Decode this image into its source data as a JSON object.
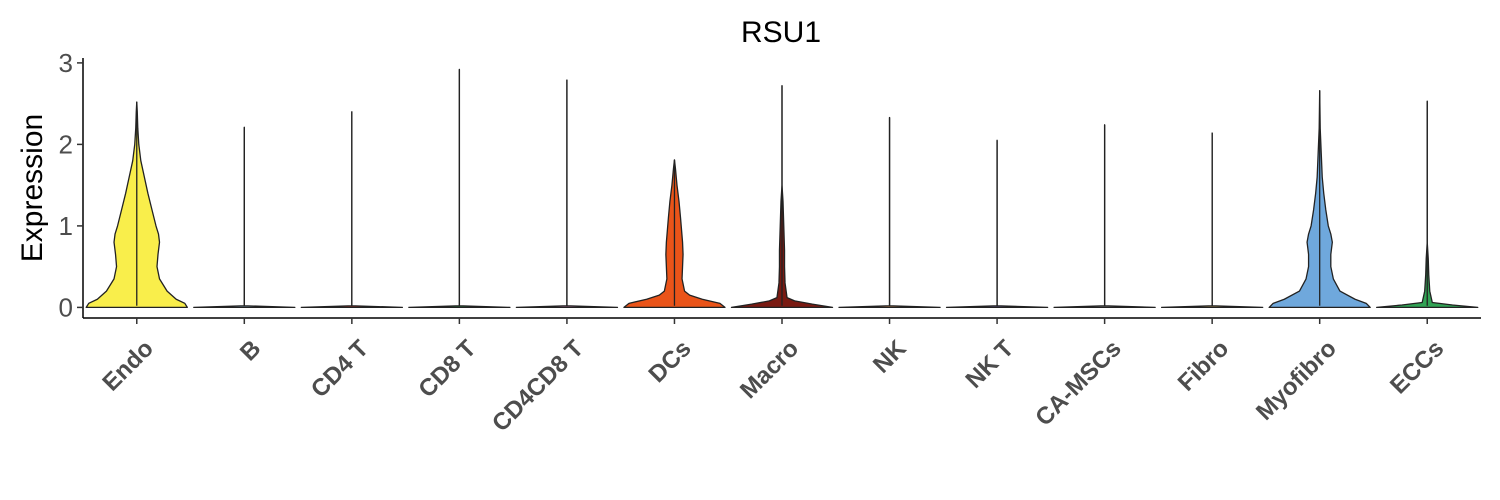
{
  "chart_data": {
    "type": "violin",
    "title": "RSU1",
    "xlabel": "",
    "ylabel": "Expression",
    "ylim": [
      -0.13,
      3.06
    ],
    "yticks": [
      0,
      1,
      2,
      3
    ],
    "categories": [
      "Endo",
      "B",
      "CD4 T",
      "CD8 T",
      "CD4CD8 T",
      "DCs",
      "Macro",
      "NK",
      "NK T",
      "CA-MSCs",
      "Fibro",
      "Myofibro",
      "ECCs"
    ],
    "colors": [
      "#F9EE4B",
      "#9EC9E2",
      "#D93A2B",
      "#2E9E4A",
      "#E08AC2",
      "#EA5419",
      "#7A1A12",
      "#F4A261",
      "#7B6CB0",
      "#9E9E9E",
      "#E9C46A",
      "#6FA8DC",
      "#31A354"
    ],
    "series": [
      {
        "name": "Endo",
        "max": 2.52,
        "profile": [
          [
            0,
            1.0
          ],
          [
            0.05,
            0.95
          ],
          [
            0.1,
            0.78
          ],
          [
            0.2,
            0.6
          ],
          [
            0.35,
            0.45
          ],
          [
            0.5,
            0.4
          ],
          [
            0.65,
            0.42
          ],
          [
            0.8,
            0.45
          ],
          [
            0.9,
            0.43
          ],
          [
            1.0,
            0.38
          ],
          [
            1.2,
            0.3
          ],
          [
            1.4,
            0.22
          ],
          [
            1.6,
            0.15
          ],
          [
            1.8,
            0.08
          ],
          [
            2.0,
            0.04
          ],
          [
            2.2,
            0.02
          ],
          [
            2.4,
            0.01
          ],
          [
            2.52,
            0.0
          ]
        ]
      },
      {
        "name": "B",
        "max": 2.21,
        "profile": [
          [
            0,
            1.0
          ],
          [
            0.02,
            0.0
          ],
          [
            2.21,
            0.0
          ]
        ]
      },
      {
        "name": "CD4 T",
        "max": 2.4,
        "profile": [
          [
            0,
            1.0
          ],
          [
            0.02,
            0.0
          ],
          [
            2.4,
            0.0
          ]
        ]
      },
      {
        "name": "CD8 T",
        "max": 2.92,
        "profile": [
          [
            0,
            1.0
          ],
          [
            0.02,
            0.0
          ],
          [
            2.92,
            0.0
          ]
        ]
      },
      {
        "name": "CD4CD8 T",
        "max": 2.79,
        "profile": [
          [
            0,
            1.0
          ],
          [
            0.02,
            0.0
          ],
          [
            2.79,
            0.0
          ]
        ]
      },
      {
        "name": "DCs",
        "max": 1.81,
        "profile": [
          [
            0,
            1.0
          ],
          [
            0.05,
            0.9
          ],
          [
            0.1,
            0.55
          ],
          [
            0.15,
            0.3
          ],
          [
            0.2,
            0.2
          ],
          [
            0.35,
            0.15
          ],
          [
            0.5,
            0.16
          ],
          [
            0.65,
            0.17
          ],
          [
            0.8,
            0.16
          ],
          [
            0.95,
            0.14
          ],
          [
            1.1,
            0.12
          ],
          [
            1.3,
            0.09
          ],
          [
            1.5,
            0.05
          ],
          [
            1.7,
            0.02
          ],
          [
            1.81,
            0.0
          ]
        ]
      },
      {
        "name": "Macro",
        "max": 2.72,
        "profile": [
          [
            0,
            1.0
          ],
          [
            0.04,
            0.6
          ],
          [
            0.08,
            0.25
          ],
          [
            0.12,
            0.1
          ],
          [
            0.3,
            0.06
          ],
          [
            0.5,
            0.05
          ],
          [
            0.7,
            0.05
          ],
          [
            0.9,
            0.04
          ],
          [
            1.1,
            0.03
          ],
          [
            1.3,
            0.02
          ],
          [
            1.5,
            0.0
          ],
          [
            2.72,
            0.0
          ]
        ]
      },
      {
        "name": "NK",
        "max": 2.33,
        "profile": [
          [
            0,
            1.0
          ],
          [
            0.02,
            0.0
          ],
          [
            2.33,
            0.0
          ]
        ]
      },
      {
        "name": "NK T",
        "max": 2.05,
        "profile": [
          [
            0,
            1.0
          ],
          [
            0.02,
            0.0
          ],
          [
            2.05,
            0.0
          ]
        ]
      },
      {
        "name": "CA-MSCs",
        "max": 2.24,
        "profile": [
          [
            0,
            1.0
          ],
          [
            0.02,
            0.0
          ],
          [
            2.24,
            0.0
          ]
        ]
      },
      {
        "name": "Fibro",
        "max": 2.14,
        "profile": [
          [
            0,
            1.0
          ],
          [
            0.02,
            0.0
          ],
          [
            2.14,
            0.0
          ]
        ]
      },
      {
        "name": "Myofibro",
        "max": 2.66,
        "profile": [
          [
            0,
            1.0
          ],
          [
            0.05,
            0.92
          ],
          [
            0.1,
            0.7
          ],
          [
            0.2,
            0.4
          ],
          [
            0.35,
            0.27
          ],
          [
            0.5,
            0.22
          ],
          [
            0.65,
            0.22
          ],
          [
            0.8,
            0.25
          ],
          [
            0.9,
            0.22
          ],
          [
            1.0,
            0.17
          ],
          [
            1.2,
            0.12
          ],
          [
            1.4,
            0.08
          ],
          [
            1.6,
            0.05
          ],
          [
            1.9,
            0.03
          ],
          [
            2.2,
            0.01
          ],
          [
            2.66,
            0.0
          ]
        ]
      },
      {
        "name": "ECCs",
        "max": 2.53,
        "profile": [
          [
            0,
            1.0
          ],
          [
            0.03,
            0.5
          ],
          [
            0.06,
            0.1
          ],
          [
            0.2,
            0.05
          ],
          [
            0.4,
            0.03
          ],
          [
            0.6,
            0.02
          ],
          [
            0.8,
            0.0
          ],
          [
            2.53,
            0.0
          ]
        ]
      }
    ]
  }
}
